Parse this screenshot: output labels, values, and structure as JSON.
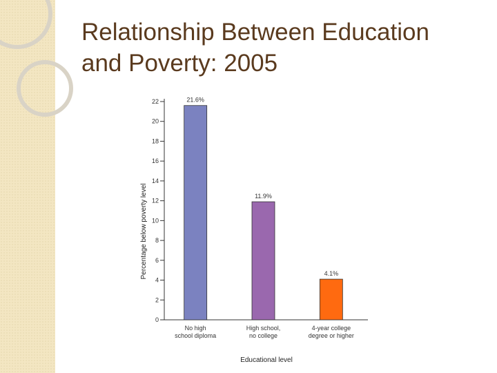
{
  "slide": {
    "title_line1": "Relationship Between Education",
    "title_line2": "and Poverty: 2005"
  },
  "colors": {
    "title": "#5a3a1e",
    "strip": "#f3e6c2",
    "ring": "#d9d3c6"
  },
  "chart_data": {
    "type": "bar",
    "categories": [
      [
        "No high",
        "school diploma"
      ],
      [
        "High school,",
        "no college"
      ],
      [
        "4-year college",
        "degree or higher"
      ]
    ],
    "values": [
      21.6,
      11.9,
      4.1
    ],
    "value_labels": [
      "21.6%",
      "11.9%",
      "4.1%"
    ],
    "bar_colors": [
      "#7b82c0",
      "#9a68ae",
      "#ff6a10"
    ],
    "xlabel": "Educational level",
    "ylabel": "Percentage below poverty level",
    "ylim": [
      0,
      22
    ],
    "yticks": [
      0,
      2,
      4,
      6,
      8,
      10,
      12,
      14,
      16,
      18,
      20,
      22
    ],
    "grid": false
  }
}
